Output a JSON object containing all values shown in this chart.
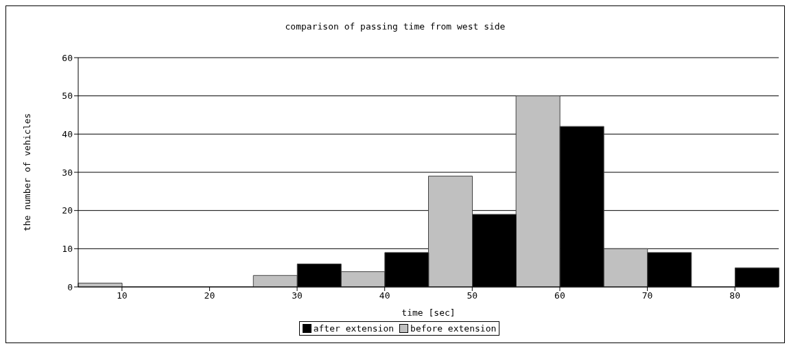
{
  "chart_data": {
    "type": "bar",
    "title": "comparison of passing time from west side",
    "xlabel": "time [sec]",
    "ylabel": "the number of vehicles",
    "categories": [
      "10",
      "20",
      "30",
      "40",
      "50",
      "60",
      "70",
      "80"
    ],
    "series": [
      {
        "name": "before extension",
        "color": "#c0c0c0",
        "values": [
          1,
          0,
          3,
          4,
          29,
          50,
          10,
          0
        ]
      },
      {
        "name": "after extension",
        "color": "#000000",
        "values": [
          0,
          0,
          6,
          9,
          19,
          42,
          9,
          5
        ]
      }
    ],
    "ylim": [
      0,
      60
    ],
    "yticks": [
      0,
      10,
      20,
      30,
      40,
      50,
      60
    ],
    "grid": "y",
    "legend": "bottom"
  }
}
